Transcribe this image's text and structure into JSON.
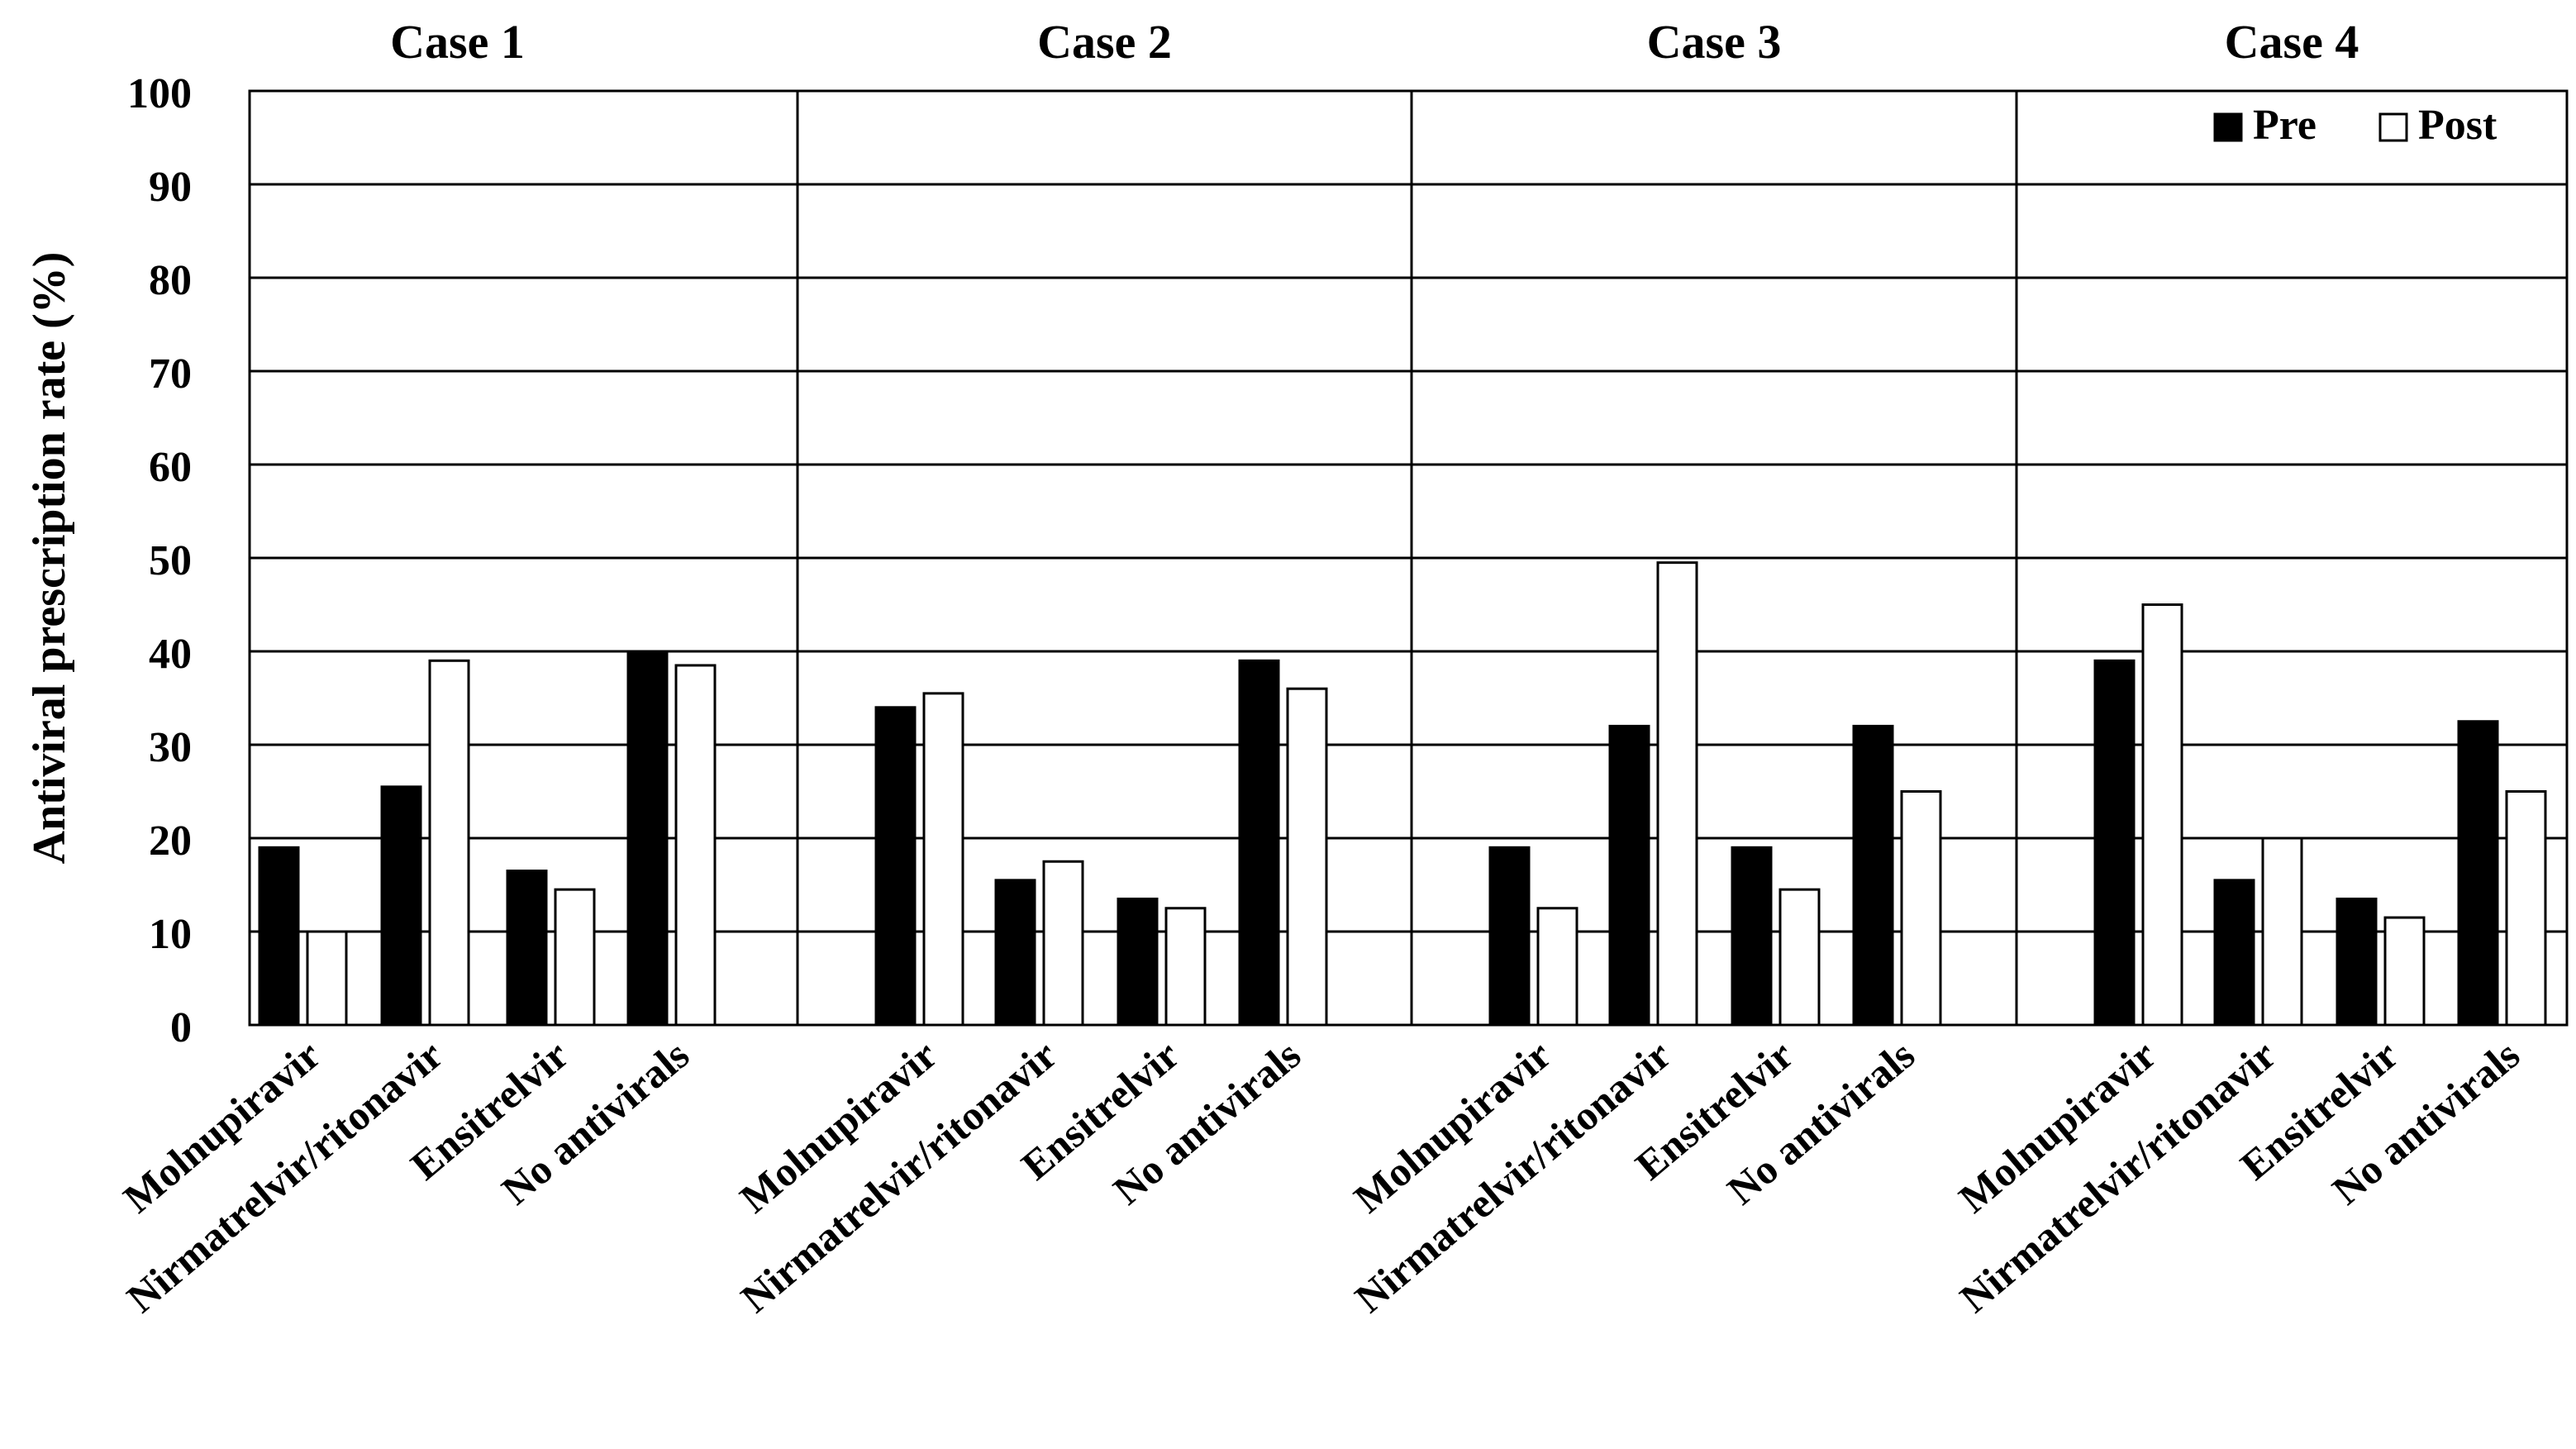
{
  "chart_data": {
    "type": "bar",
    "ylabel": "Antiviral prescription rate (%)",
    "ylim": [
      0,
      100
    ],
    "yticks": [
      0,
      10,
      20,
      30,
      40,
      50,
      60,
      70,
      80,
      90,
      100
    ],
    "grid": true,
    "legend_placement": "top-right",
    "series": [
      {
        "name": "Pre",
        "color": "#000000"
      },
      {
        "name": "Post",
        "color": "#ffffff"
      }
    ],
    "panels": [
      {
        "title": "Case 1",
        "categories": [
          "Molnupiravir",
          "Nirmatrelvir/ritonavir",
          "Ensitrelvir",
          "No antivirals"
        ],
        "pre": [
          19,
          25.5,
          16.5,
          40
        ],
        "post": [
          10,
          39,
          14.5,
          38.5
        ]
      },
      {
        "title": "Case 2",
        "categories": [
          "Molnupiravir",
          "Nirmatrelvir/ritonavir",
          "Ensitrelvir",
          "No antivirals"
        ],
        "pre": [
          34,
          15.5,
          13.5,
          39
        ],
        "post": [
          35.5,
          17.5,
          12.5,
          36
        ]
      },
      {
        "title": "Case 3",
        "categories": [
          "Molnupiravir",
          "Nirmatrelvir/ritonavir",
          "Ensitrelvir",
          "No antivirals"
        ],
        "pre": [
          19,
          32,
          19,
          32
        ],
        "post": [
          12.5,
          49.5,
          14.5,
          25
        ]
      },
      {
        "title": "Case 4",
        "categories": [
          "Molnupiravir",
          "Nirmatrelvir/ritonavir",
          "Ensitrelvir",
          "No antivirals"
        ],
        "pre": [
          39,
          15.5,
          13.5,
          32.5
        ],
        "post": [
          45,
          20,
          11.5,
          25
        ]
      }
    ]
  }
}
